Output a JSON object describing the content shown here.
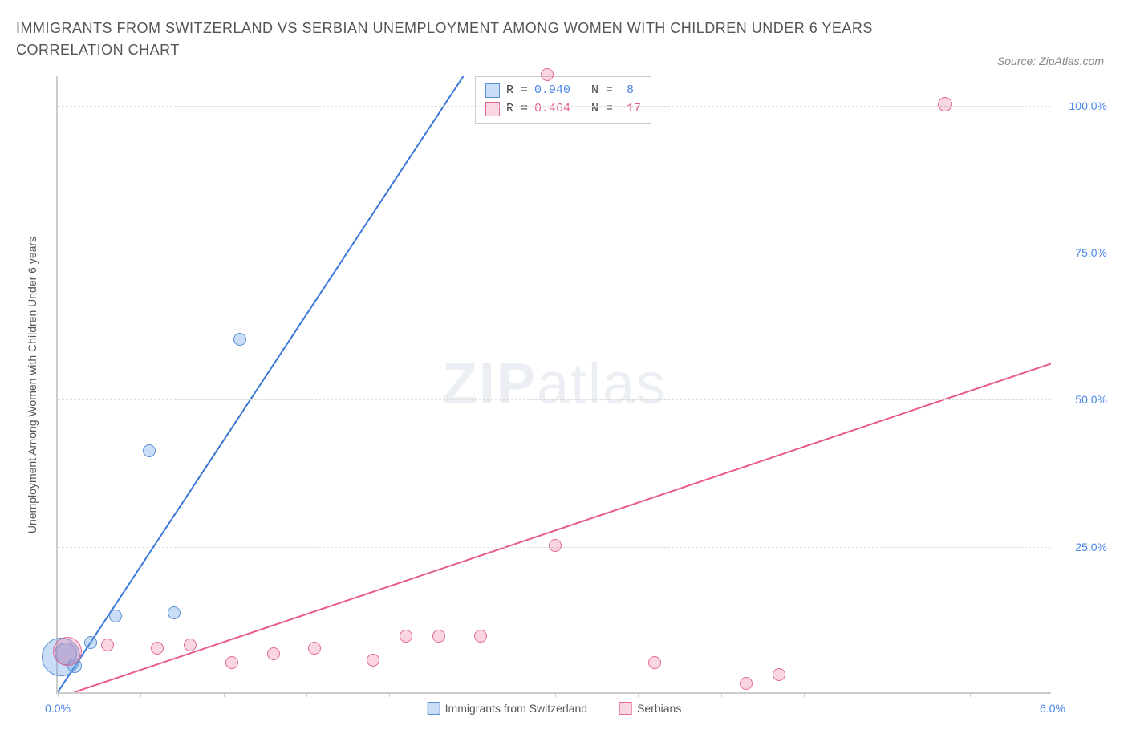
{
  "title": "IMMIGRANTS FROM SWITZERLAND VS SERBIAN UNEMPLOYMENT AMONG WOMEN WITH CHILDREN UNDER 6 YEARS CORRELATION CHART",
  "source": "Source: ZipAtlas.com",
  "y_axis_label": "Unemployment Among Women with Children Under 6 years",
  "watermark_bold": "ZIP",
  "watermark_light": "atlas",
  "chart": {
    "type": "scatter",
    "xlim": [
      0,
      6
    ],
    "ylim": [
      0,
      105
    ],
    "x_ticks": [
      0,
      0.5,
      1.0,
      1.5,
      2.0,
      2.5,
      3.0,
      3.5,
      4.0,
      4.5,
      5.0,
      5.5,
      6.0
    ],
    "x_tick_labels": {
      "0": "0.0%",
      "6": "6.0%"
    },
    "y_ticks": [
      25,
      50,
      75,
      100
    ],
    "y_tick_labels": {
      "25": "25.0%",
      "50": "50.0%",
      "75": "75.0%",
      "100": "100.0%"
    },
    "background_color": "#ffffff",
    "grid_color": "#dddddd",
    "axis_color": "#cccccc",
    "axis_tick_label_color": "#4a86e8",
    "axis_label_color": "#555555",
    "title_color": "#555555",
    "title_fontsize": 18,
    "label_fontsize": 14
  },
  "series": [
    {
      "name": "Immigrants from Switzerland",
      "legend_label": "Immigrants from Switzerland",
      "fill_color": "rgba(100,160,230,0.35)",
      "stroke_color": "#5b8fd6",
      "trend_color": "#3a78d8",
      "trend_width": 2,
      "stats": {
        "R_label": "R =",
        "R": "0.940",
        "N_label": "N =",
        "N": "8"
      },
      "trend": {
        "x1": 0,
        "y1": 0,
        "x2": 2.45,
        "y2": 105
      },
      "points": [
        {
          "x": 0.05,
          "y": 6.5,
          "r": 14
        },
        {
          "x": 0.1,
          "y": 4.5,
          "r": 9
        },
        {
          "x": 0.2,
          "y": 8.5,
          "r": 8
        },
        {
          "x": 0.35,
          "y": 13.0,
          "r": 8
        },
        {
          "x": 0.7,
          "y": 13.5,
          "r": 8
        },
        {
          "x": 0.55,
          "y": 41.0,
          "r": 8
        },
        {
          "x": 1.1,
          "y": 60.0,
          "r": 8
        },
        {
          "x": 0.02,
          "y": 6.0,
          "r": 24
        }
      ]
    },
    {
      "name": "Serbians",
      "legend_label": "Serbians",
      "fill_color": "rgba(240,120,160,0.30)",
      "stroke_color": "#e06a95",
      "trend_color": "#e85a8a",
      "trend_width": 2,
      "stats": {
        "R_label": "R =",
        "R": "0.464",
        "N_label": "N =",
        "N": "17"
      },
      "trend": {
        "x1": 0.1,
        "y1": 0,
        "x2": 6.0,
        "y2": 56
      },
      "points": [
        {
          "x": 0.06,
          "y": 7.0,
          "r": 18
        },
        {
          "x": 0.3,
          "y": 8.0,
          "r": 8
        },
        {
          "x": 0.6,
          "y": 7.5,
          "r": 8
        },
        {
          "x": 0.8,
          "y": 8.0,
          "r": 8
        },
        {
          "x": 1.05,
          "y": 5.0,
          "r": 8
        },
        {
          "x": 1.3,
          "y": 6.5,
          "r": 8
        },
        {
          "x": 1.55,
          "y": 7.5,
          "r": 8
        },
        {
          "x": 1.9,
          "y": 5.5,
          "r": 8
        },
        {
          "x": 2.1,
          "y": 9.5,
          "r": 8
        },
        {
          "x": 2.3,
          "y": 9.5,
          "r": 8
        },
        {
          "x": 2.55,
          "y": 9.5,
          "r": 8
        },
        {
          "x": 3.0,
          "y": 25.0,
          "r": 8
        },
        {
          "x": 3.6,
          "y": 5.0,
          "r": 8
        },
        {
          "x": 4.15,
          "y": 1.5,
          "r": 8
        },
        {
          "x": 4.35,
          "y": 3.0,
          "r": 8
        },
        {
          "x": 5.35,
          "y": 100.0,
          "r": 9
        },
        {
          "x": 2.95,
          "y": 105.0,
          "r": 8
        }
      ]
    }
  ]
}
